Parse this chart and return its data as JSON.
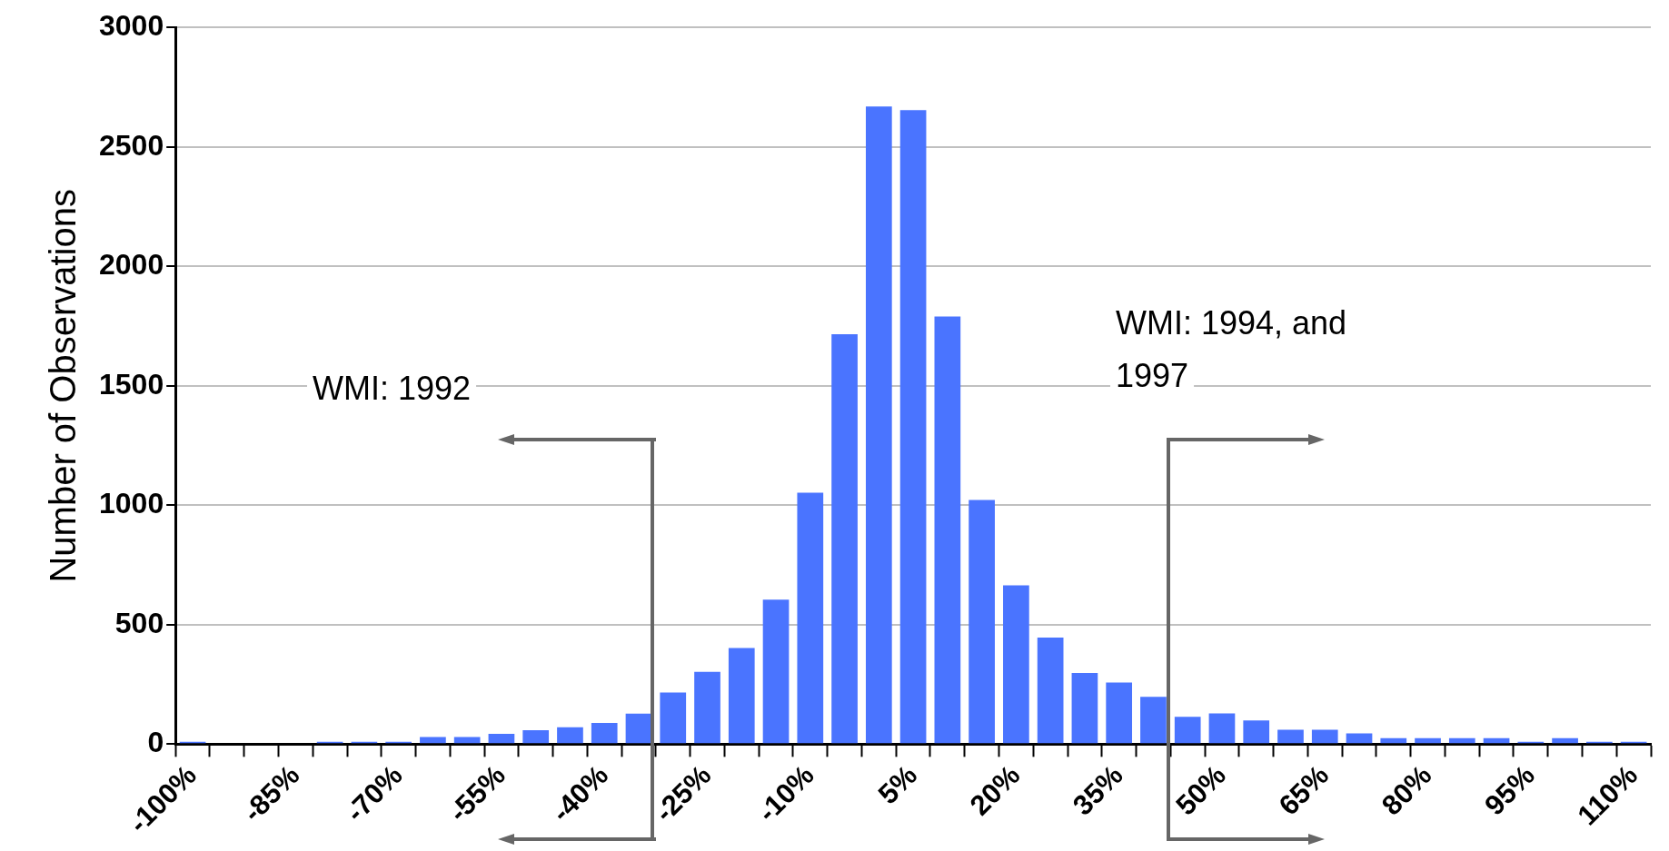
{
  "chart_data": {
    "type": "bar",
    "ylabel": "Number of Observations",
    "categories": [
      "-100%",
      null,
      null,
      "-85%",
      null,
      null,
      "-70%",
      null,
      null,
      "-55%",
      null,
      null,
      "-40%",
      null,
      null,
      "-25%",
      null,
      null,
      "-10%",
      null,
      null,
      "5%",
      null,
      null,
      "20%",
      null,
      null,
      "35%",
      null,
      null,
      "50%",
      null,
      null,
      "65%",
      null,
      null,
      "80%",
      null,
      null,
      "95%",
      null,
      null,
      "110%"
    ],
    "values": [
      10,
      0,
      0,
      0,
      10,
      10,
      10,
      30,
      30,
      43,
      58,
      71,
      89,
      128,
      216,
      303,
      402,
      605,
      1052,
      1716,
      2669,
      2654,
      1790,
      1022,
      665,
      446,
      298,
      258,
      198,
      114,
      129,
      99,
      60,
      60,
      45,
      25,
      25,
      25,
      25,
      10,
      25,
      10,
      10
    ],
    "color": "#4a74ff",
    "ylim": [
      0,
      3000
    ],
    "yticks": [
      0,
      500,
      1000,
      1500,
      2000,
      2500,
      3000
    ],
    "grid": "y",
    "annotations": [
      "WMI: 1992",
      "WMI: 1994, and 1997"
    ]
  }
}
